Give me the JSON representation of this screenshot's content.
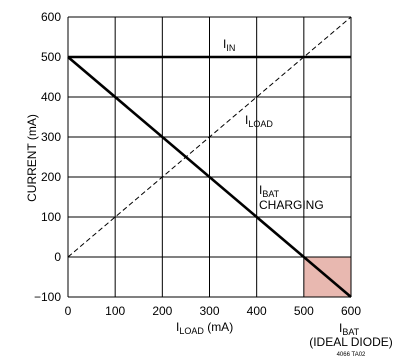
{
  "chart_data": {
    "type": "line",
    "x_range": [
      0,
      600
    ],
    "y_range": [
      -100,
      600
    ],
    "x_ticks": [
      "0",
      "100",
      "200",
      "300",
      "400",
      "500",
      "600"
    ],
    "y_ticks": [
      "600",
      "500",
      "400",
      "300",
      "200",
      "100",
      "0",
      "−100"
    ],
    "x_tick_values": [
      0,
      100,
      200,
      300,
      400,
      500,
      600
    ],
    "y_tick_values": [
      600,
      500,
      400,
      300,
      200,
      100,
      0,
      -100
    ],
    "ylabel": "CURRENT (mA)",
    "xlabel_main": "I",
    "xlabel_sub": "LOAD",
    "xlabel_unit": " (mA)",
    "grid": true,
    "series": [
      {
        "name": "IIN",
        "style": "solid-thick",
        "x": [
          0,
          600
        ],
        "y": [
          500,
          500
        ]
      },
      {
        "name": "ILOAD",
        "style": "dashed",
        "x": [
          0,
          600
        ],
        "y": [
          0,
          600
        ]
      },
      {
        "name": "IBAT CHARGING",
        "style": "solid-thick",
        "x": [
          0,
          600
        ],
        "y": [
          500,
          -100
        ]
      }
    ],
    "shaded_region": {
      "x": [
        500,
        600
      ],
      "y": [
        -100,
        0
      ],
      "color": "#e8b8b0"
    },
    "annotations": {
      "iin": {
        "main": "I",
        "sub": "IN"
      },
      "iload": {
        "main": "I",
        "sub": "LOAD"
      },
      "ibat": {
        "main": "I",
        "sub": "BAT",
        "line2": "CHARGING"
      },
      "ibat_diode": {
        "main": "I",
        "sub": "BAT",
        "line2": "(IDEAL DIODE)"
      },
      "figure_code": "4066 TA02"
    }
  }
}
